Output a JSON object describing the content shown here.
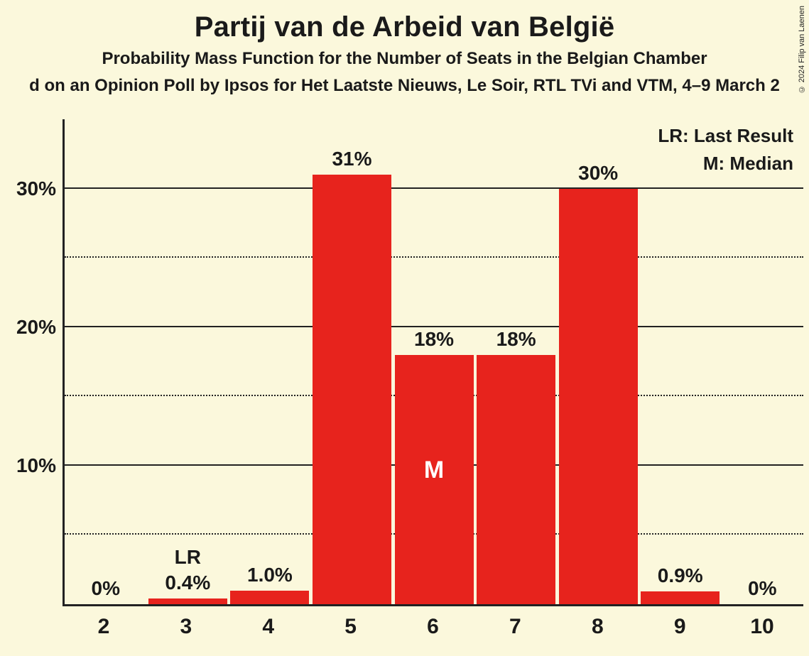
{
  "copyright": "© 2024 Filip van Laenen",
  "title": "Partij van de Arbeid van België",
  "subtitle": "Probability Mass Function for the Number of Seats in the Belgian Chamber",
  "source": "d on an Opinion Poll by Ipsos for Het Laatste Nieuws, Le Soir, RTL TVi and VTM, 4–9 March 2",
  "legend": {
    "lr": "LR: Last Result",
    "m": "M: Median"
  },
  "chart": {
    "type": "bar",
    "bar_color": "#e7231d",
    "background_color": "#fbf8dc",
    "axis_color": "#222222",
    "grid_solid_color": "#222222",
    "grid_dotted_color": "#222222",
    "label_color": "#1a1a1a",
    "m_label_color": "#ffffff",
    "title_fontsize": 40,
    "subtitle_fontsize": 24,
    "label_fontsize": 28,
    "xtick_fontsize": 30,
    "bar_width_pct": 96,
    "ylim": [
      0,
      35
    ],
    "y_major_ticks": [
      10,
      20,
      30
    ],
    "y_minor_ticks": [
      5,
      15,
      25
    ],
    "categories": [
      "2",
      "3",
      "4",
      "5",
      "6",
      "7",
      "8",
      "9",
      "10"
    ],
    "values": [
      0,
      0.4,
      1.0,
      31,
      18,
      18,
      30,
      0.9,
      0
    ],
    "value_labels": [
      "0%",
      "0.4%",
      "1.0%",
      "31%",
      "18%",
      "18%",
      "30%",
      "0.9%",
      "0%"
    ],
    "lr_index": 1,
    "lr_text": "LR",
    "median_index": 4,
    "median_text": "M"
  }
}
